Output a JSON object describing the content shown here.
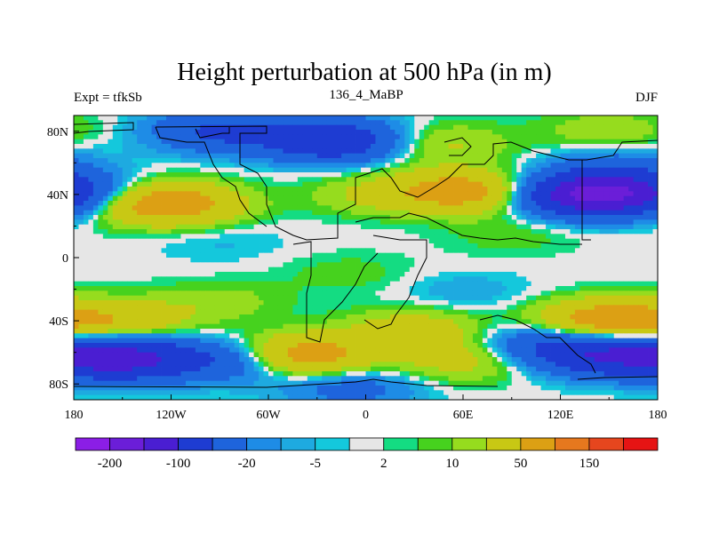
{
  "chart_data": {
    "type": "heatmap",
    "title": "Height perturbation at 500 hPa (in m)",
    "left_label": "Expt = tfkSb",
    "center_label": "136_4_MaBP",
    "right_label": "DJF",
    "x_ticks": [
      {
        "value": -180,
        "label": "180"
      },
      {
        "value": -120,
        "label": "120W"
      },
      {
        "value": -60,
        "label": "60W"
      },
      {
        "value": 0,
        "label": "0"
      },
      {
        "value": 60,
        "label": "60E"
      },
      {
        "value": 120,
        "label": "120E"
      },
      {
        "value": 180,
        "label": "180"
      }
    ],
    "y_ticks": [
      {
        "value": 80,
        "label": "80N"
      },
      {
        "value": 40,
        "label": "40N"
      },
      {
        "value": 0,
        "label": "0"
      },
      {
        "value": -40,
        "label": "40S"
      },
      {
        "value": -80,
        "label": "80S"
      }
    ],
    "xlim": [
      -180,
      180
    ],
    "ylim": [
      -90,
      90
    ],
    "colorbar": {
      "levels": [
        -200,
        -150,
        -100,
        -50,
        -20,
        -10,
        -5,
        -2,
        2,
        5,
        10,
        20,
        50,
        100,
        150,
        200
      ],
      "colors": [
        "#8b1ee6",
        "#6b1ed8",
        "#4a1ed2",
        "#1e3cd2",
        "#1e64dc",
        "#1e8ce6",
        "#1eaae0",
        "#14c8dc",
        "#e6e6e6",
        "#14dc82",
        "#46d21e",
        "#96dc1e",
        "#c8c814",
        "#dca014",
        "#e6781e",
        "#e6461e",
        "#e61414"
      ],
      "labels": [
        {
          "level": -200,
          "label": "-200"
        },
        {
          "level": -100,
          "label": "-100"
        },
        {
          "level": -20,
          "label": "-20"
        },
        {
          "level": -5,
          "label": "-5"
        },
        {
          "level": 2,
          "label": "2"
        },
        {
          "level": 10,
          "label": "10"
        },
        {
          "level": 50,
          "label": "50"
        },
        {
          "level": 150,
          "label": "150"
        }
      ]
    },
    "field_anomalies": [
      {
        "lon": -90,
        "lat": 80,
        "value": -55
      },
      {
        "lon": -20,
        "lat": 74,
        "value": -90
      },
      {
        "lon": 45,
        "lat": 72,
        "value": 25
      },
      {
        "lon": 150,
        "lat": 80,
        "value": 18
      },
      {
        "lon": -120,
        "lat": 34,
        "value": 70
      },
      {
        "lon": -150,
        "lat": 36,
        "value": 25
      },
      {
        "lon": 60,
        "lat": 42,
        "value": 70
      },
      {
        "lon": 5,
        "lat": 40,
        "value": 20
      },
      {
        "lon": 140,
        "lat": 40,
        "value": -160
      },
      {
        "lon": -175,
        "lat": 40,
        "value": -50
      },
      {
        "lon": 155,
        "lat": 58,
        "value": -25
      },
      {
        "lon": -90,
        "lat": 10,
        "value": -6
      },
      {
        "lon": 90,
        "lat": 14,
        "value": 8
      },
      {
        "lon": -90,
        "lat": -28,
        "value": 14
      },
      {
        "lon": 60,
        "lat": -22,
        "value": -9
      },
      {
        "lon": -10,
        "lat": -10,
        "value": 8
      },
      {
        "lon": -150,
        "lat": -40,
        "value": 40
      },
      {
        "lon": 30,
        "lat": -46,
        "value": 35
      },
      {
        "lon": 150,
        "lat": -40,
        "value": 80
      },
      {
        "lon": 110,
        "lat": -55,
        "value": -40
      },
      {
        "lon": -150,
        "lat": -64,
        "value": -120
      },
      {
        "lon": -80,
        "lat": -65,
        "value": -50
      },
      {
        "lon": 150,
        "lat": -62,
        "value": -90
      },
      {
        "lon": -40,
        "lat": -62,
        "value": 80
      },
      {
        "lon": 60,
        "lat": -65,
        "value": 30
      },
      {
        "lon": -10,
        "lat": -82,
        "value": -30
      }
    ]
  }
}
